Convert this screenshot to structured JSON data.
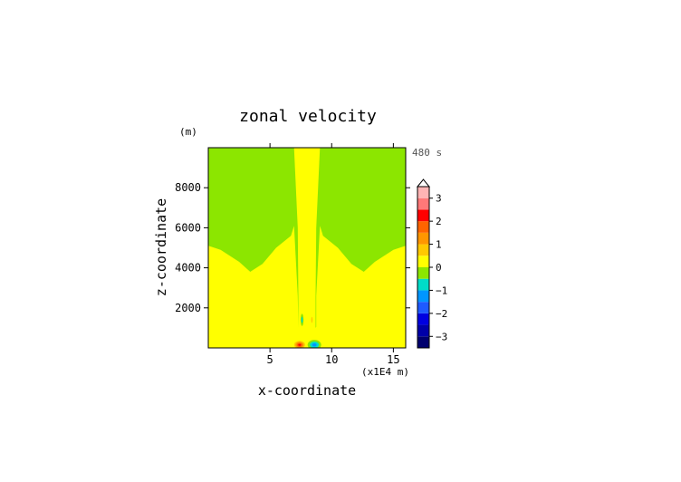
{
  "chart_data": {
    "type": "heatmap",
    "title": "zonal velocity",
    "xlabel": "x-coordinate",
    "ylabel": "z-coordinate",
    "x_unit_label": "(x1E4 m)",
    "y_unit_label": "(m)",
    "time_label": "480 s",
    "xlim": [
      0,
      16
    ],
    "ylim": [
      0,
      10000
    ],
    "x_ticks": [
      {
        "value": 5,
        "label": "5"
      },
      {
        "value": 10,
        "label": "10"
      },
      {
        "value": 15,
        "label": "15"
      }
    ],
    "y_ticks": [
      {
        "value": 2000,
        "label": "2000"
      },
      {
        "value": 4000,
        "label": "4000"
      },
      {
        "value": 6000,
        "label": "6000"
      },
      {
        "value": 8000,
        "label": "8000"
      }
    ],
    "colorbar": {
      "min": -3.5,
      "max": 3.5,
      "levels": [
        {
          "from": -3.5,
          "to": -3.0,
          "color": "#00006e"
        },
        {
          "from": -3.0,
          "to": -2.5,
          "color": "#0000a8"
        },
        {
          "from": -2.5,
          "to": -2.0,
          "color": "#0000e0"
        },
        {
          "from": -2.0,
          "to": -1.5,
          "color": "#1e5aff"
        },
        {
          "from": -1.5,
          "to": -1.0,
          "color": "#0096ff"
        },
        {
          "from": -1.0,
          "to": -0.5,
          "color": "#00dcc8"
        },
        {
          "from": -0.5,
          "to": 0.0,
          "color": "#8ce600"
        },
        {
          "from": 0.0,
          "to": 0.5,
          "color": "#ffff00"
        },
        {
          "from": 0.5,
          "to": 1.0,
          "color": "#ffc800"
        },
        {
          "from": 1.0,
          "to": 1.5,
          "color": "#ff9600"
        },
        {
          "from": 1.5,
          "to": 2.0,
          "color": "#ff6400"
        },
        {
          "from": 2.0,
          "to": 2.5,
          "color": "#ff0000"
        },
        {
          "from": 2.5,
          "to": 3.0,
          "color": "#ff7878"
        },
        {
          "from": 3.0,
          "to": 3.5,
          "color": "#ffb4b4"
        }
      ],
      "tick_labels": [
        {
          "value": 3,
          "label": "3"
        },
        {
          "value": 2,
          "label": "2"
        },
        {
          "value": 1,
          "label": "1"
        },
        {
          "value": 0,
          "label": "0"
        },
        {
          "value": -1,
          "label": "−1"
        },
        {
          "value": -2,
          "label": "−2"
        },
        {
          "value": -3,
          "label": "−3"
        }
      ]
    },
    "regions": [
      {
        "value": 0.25,
        "x_range": [
          0,
          16
        ],
        "z_range": [
          0,
          10000
        ],
        "level_color": "#ffff00"
      },
      {
        "value": -0.25,
        "level_color": "#8ce600",
        "outline": [
          [
            0,
            10000
          ],
          [
            6.95,
            10000
          ],
          [
            7.25,
            6000
          ],
          [
            7.3,
            2500
          ],
          [
            7.3,
            1000
          ],
          [
            8.7,
            1000
          ],
          [
            8.7,
            2500
          ],
          [
            8.75,
            6000
          ],
          [
            9.05,
            10000
          ],
          [
            16,
            10000
          ],
          [
            16,
            5100
          ],
          [
            15,
            4900
          ],
          [
            13.5,
            4300
          ],
          [
            12.6,
            3800
          ],
          [
            11.6,
            4200
          ],
          [
            10.5,
            5000
          ],
          [
            9.3,
            5600
          ],
          [
            9.05,
            6100
          ],
          [
            8.75,
            2600
          ],
          [
            8.75,
            1050
          ],
          [
            8.7,
            1000
          ],
          [
            7.3,
            1000
          ],
          [
            7.25,
            2600
          ],
          [
            6.95,
            6100
          ],
          [
            6.7,
            5600
          ],
          [
            5.5,
            5000
          ],
          [
            4.4,
            4200
          ],
          [
            3.4,
            3800
          ],
          [
            2.5,
            4300
          ],
          [
            1,
            4900
          ],
          [
            0,
            5100
          ]
        ]
      },
      {
        "value": 0.25,
        "level_color": "#ffff00",
        "outline": [
          [
            7.4,
            10000
          ],
          [
            7.65,
            10000
          ],
          [
            7.75,
            6300
          ],
          [
            7.6,
            6000
          ],
          [
            7.45,
            6400
          ]
        ]
      },
      {
        "value": 0.25,
        "level_color": "#ffff00",
        "outline": [
          [
            8.35,
            10000
          ],
          [
            8.6,
            10000
          ],
          [
            8.55,
            6400
          ],
          [
            8.4,
            6000
          ],
          [
            8.25,
            6300
          ]
        ]
      }
    ],
    "features": [
      {
        "kind": "min",
        "x": 8.6,
        "z": 150,
        "rx": 0.55,
        "rz": 250,
        "value": -1.4
      },
      {
        "kind": "max",
        "x": 7.4,
        "z": 150,
        "rx": 0.55,
        "rz": 250,
        "value": 2.2
      },
      {
        "kind": "min",
        "x": 7.6,
        "z": 1400,
        "rx": 0.12,
        "rz": 300,
        "value": -1.0
      },
      {
        "kind": "max",
        "x": 8.4,
        "z": 1400,
        "rx": 0.12,
        "rz": 300,
        "value": 0.8
      }
    ]
  }
}
